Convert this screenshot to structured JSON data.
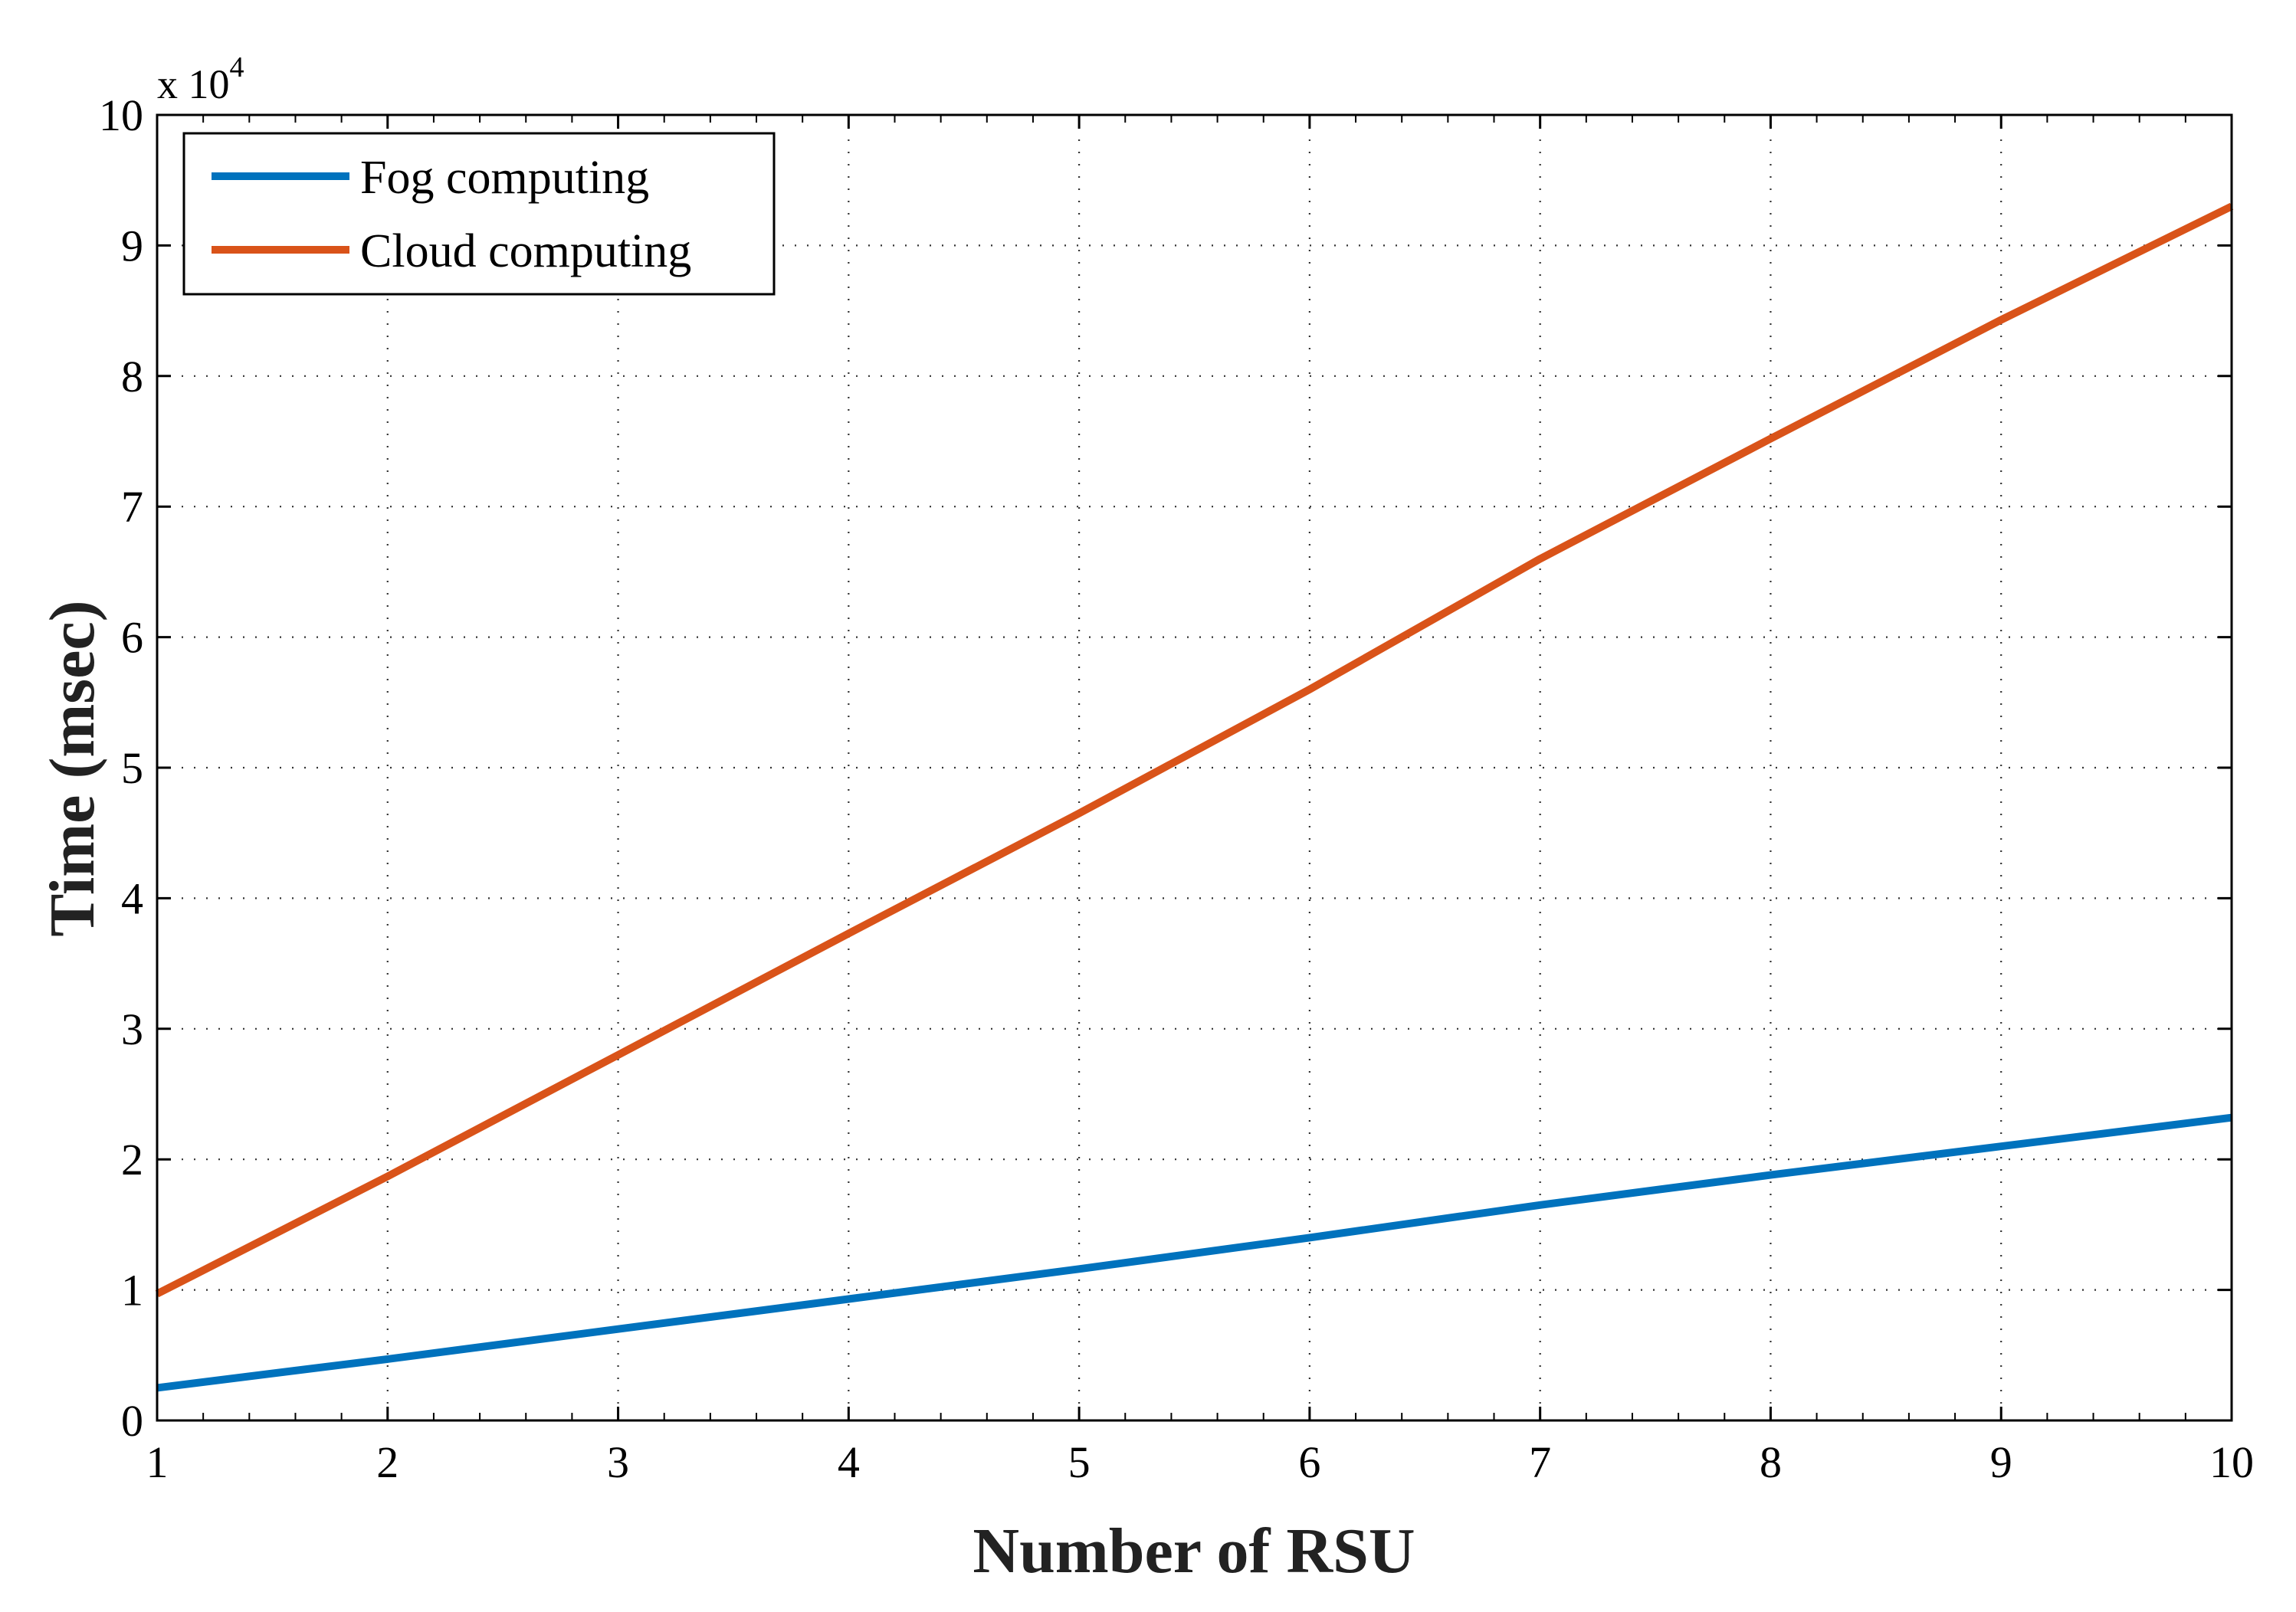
{
  "chart_data": {
    "type": "line",
    "title": "",
    "xlabel": "Number of RSU",
    "ylabel": "Time (msec)",
    "y_multiplier": {
      "base": "x 10",
      "exponent": "4"
    },
    "xlim": [
      1,
      10
    ],
    "ylim": [
      0,
      100000
    ],
    "x_ticks": [
      1,
      2,
      3,
      4,
      5,
      6,
      7,
      8,
      9,
      10
    ],
    "x_tick_labels": [
      "1",
      "2",
      "3",
      "4",
      "5",
      "6",
      "7",
      "8",
      "9",
      "10"
    ],
    "y_ticks": [
      0,
      10000,
      20000,
      30000,
      40000,
      50000,
      60000,
      70000,
      80000,
      90000,
      100000
    ],
    "y_tick_labels": [
      "0",
      "1",
      "2",
      "3",
      "4",
      "5",
      "6",
      "7",
      "8",
      "9",
      "10"
    ],
    "grid": true,
    "legend_position": "top-left",
    "x": [
      1,
      2,
      3,
      4,
      5,
      6,
      7,
      8,
      9,
      10
    ],
    "series": [
      {
        "name": "Fog computing",
        "color": "#0072BD",
        "values": [
          2500,
          4700,
          7000,
          9300,
          11600,
          14000,
          16500,
          18800,
          21000,
          23200
        ]
      },
      {
        "name": "Cloud computing",
        "color": "#D95319",
        "values": [
          9700,
          18700,
          28000,
          37300,
          46500,
          56000,
          66000,
          75200,
          84300,
          93000
        ]
      }
    ]
  }
}
